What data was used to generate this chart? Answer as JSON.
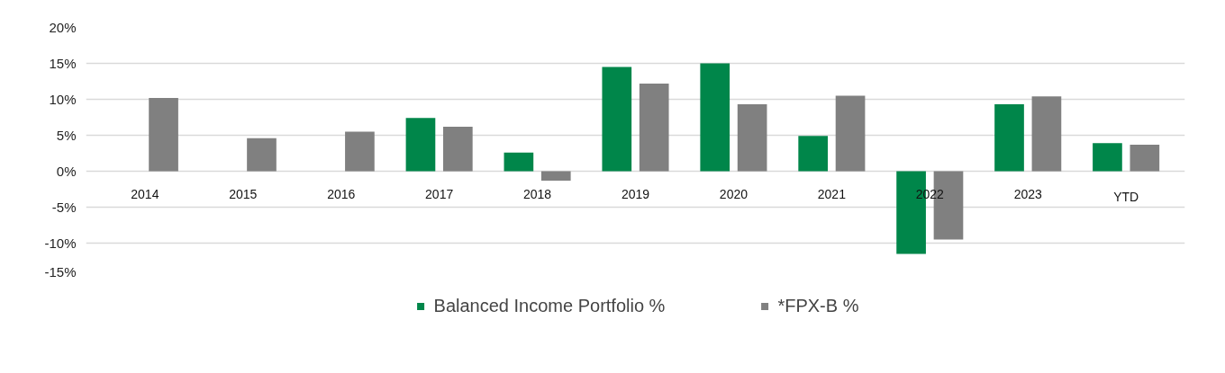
{
  "chart_data": {
    "type": "bar",
    "categories": [
      "2014",
      "2015",
      "2016",
      "2017",
      "2018",
      "2019",
      "2020",
      "2021",
      "2022",
      "2023",
      "YTD"
    ],
    "series": [
      {
        "name": "Balanced Income Portfolio %",
        "color": "#00864a",
        "values": [
          null,
          null,
          null,
          7.4,
          2.6,
          14.5,
          15.0,
          4.9,
          -11.5,
          9.3,
          3.9
        ]
      },
      {
        "name": "*FPX-B %",
        "color": "#808080",
        "values": [
          10.2,
          4.6,
          5.5,
          6.2,
          -1.3,
          12.2,
          9.3,
          10.5,
          -9.5,
          10.4,
          3.7
        ]
      }
    ],
    "ylim": [
      -15,
      20
    ],
    "yticks": [
      {
        "value": -15,
        "label": "-15%"
      },
      {
        "value": -10,
        "label": "-10%"
      },
      {
        "value": -5,
        "label": "-5%"
      },
      {
        "value": 0,
        "label": "0%"
      },
      {
        "value": 5,
        "label": "5%"
      },
      {
        "value": 10,
        "label": "10%"
      },
      {
        "value": 15,
        "label": "15%"
      },
      {
        "value": 20,
        "label": "20%"
      }
    ],
    "grid": "y",
    "legend": "bottom"
  }
}
